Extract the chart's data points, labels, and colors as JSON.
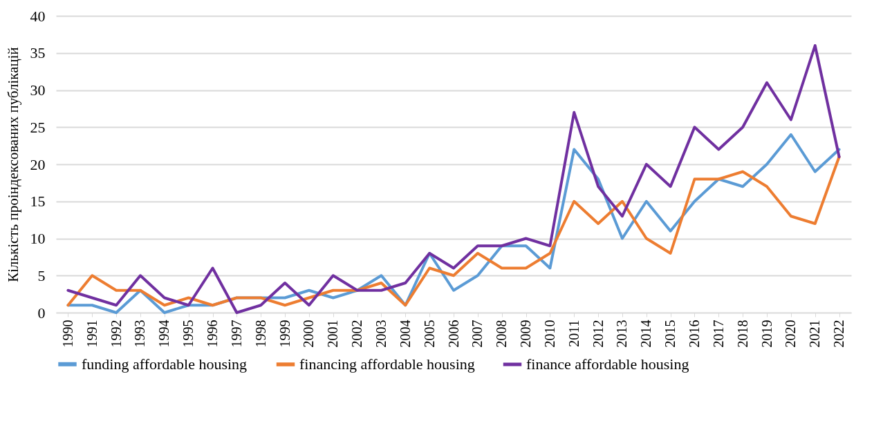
{
  "chart_data": {
    "type": "line",
    "ylabel": "Кількість проіндексованих публікацій",
    "categories": [
      "1990",
      "1991",
      "1992",
      "1993",
      "1994",
      "1995",
      "1996",
      "1997",
      "1998",
      "1999",
      "2000",
      "2001",
      "2002",
      "2003",
      "2004",
      "2005",
      "2006",
      "2007",
      "2008",
      "2009",
      "2010",
      "2011",
      "2012",
      "2013",
      "2014",
      "2015",
      "2016",
      "2017",
      "2018",
      "2019",
      "2020",
      "2021",
      "2022"
    ],
    "series": [
      {
        "name": "funding affordable housing",
        "color": "#5b9bd5",
        "values": [
          1,
          1,
          0,
          3,
          0,
          1,
          1,
          2,
          2,
          2,
          3,
          2,
          3,
          5,
          1,
          8,
          3,
          5,
          9,
          9,
          6,
          22,
          18,
          10,
          15,
          11,
          15,
          18,
          17,
          20,
          24,
          19,
          22
        ]
      },
      {
        "name": "financing affordable housing",
        "color": "#ed7d31",
        "values": [
          1,
          5,
          3,
          3,
          1,
          2,
          1,
          2,
          2,
          1,
          2,
          3,
          3,
          4,
          1,
          6,
          5,
          8,
          6,
          6,
          8,
          15,
          12,
          15,
          10,
          8,
          18,
          18,
          19,
          17,
          13,
          12,
          21
        ]
      },
      {
        "name": "finance affordable housing",
        "color": "#7030a0",
        "values": [
          3,
          2,
          1,
          5,
          2,
          1,
          6,
          0,
          1,
          4,
          1,
          5,
          3,
          3,
          4,
          8,
          6,
          9,
          9,
          10,
          9,
          27,
          17,
          13,
          20,
          17,
          25,
          22,
          25,
          31,
          26,
          36,
          21
        ]
      }
    ],
    "ylim": [
      0,
      40
    ],
    "yticks": [
      0,
      5,
      10,
      15,
      20,
      25,
      30,
      35,
      40
    ],
    "grid": "y",
    "legend": "bottom",
    "marker": "none",
    "line_style": "solid"
  }
}
